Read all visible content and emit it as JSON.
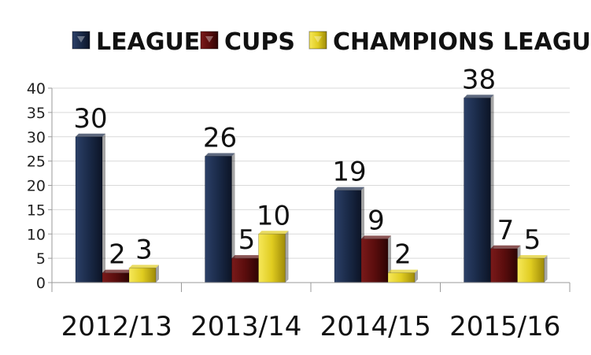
{
  "chart_data": {
    "type": "bar",
    "categories": [
      "2012/13",
      "2013/14",
      "2014/15",
      "2015/16"
    ],
    "series": [
      {
        "name": "LEAGUE",
        "values": [
          30,
          26,
          19,
          38
        ],
        "color": "#1a2a48"
      },
      {
        "name": "CUPS",
        "values": [
          2,
          5,
          9,
          7
        ],
        "color": "#5a0d0d"
      },
      {
        "name": "CHAMPIONS LEAGUE",
        "values": [
          3,
          10,
          2,
          5
        ],
        "color": "#e0cc20"
      }
    ],
    "yticks": [
      "0",
      "5",
      "10",
      "15",
      "20",
      "25",
      "30",
      "35",
      "40"
    ],
    "ylim": [
      0,
      40
    ],
    "grid": true,
    "legend_position": "top",
    "data_labels": true
  }
}
